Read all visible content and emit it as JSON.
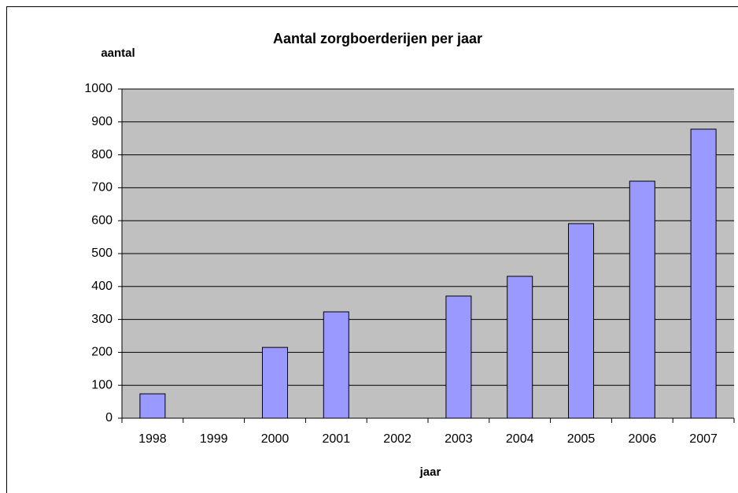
{
  "chart_data": {
    "type": "bar",
    "title": "Aantal zorgboerderijen per jaar",
    "y_label": "aantal",
    "x_label": "jaar",
    "categories": [
      "1998",
      "1999",
      "2000",
      "2001",
      "2002",
      "2003",
      "2004",
      "2005",
      "2006",
      "2007"
    ],
    "values": [
      74,
      null,
      215,
      323,
      null,
      371,
      431,
      591,
      720,
      878
    ],
    "color": "#9999ff",
    "ylim": [
      0,
      1000
    ],
    "yticks": [
      0,
      100,
      200,
      300,
      400,
      500,
      600,
      700,
      800,
      900,
      1000
    ],
    "grid": true
  }
}
